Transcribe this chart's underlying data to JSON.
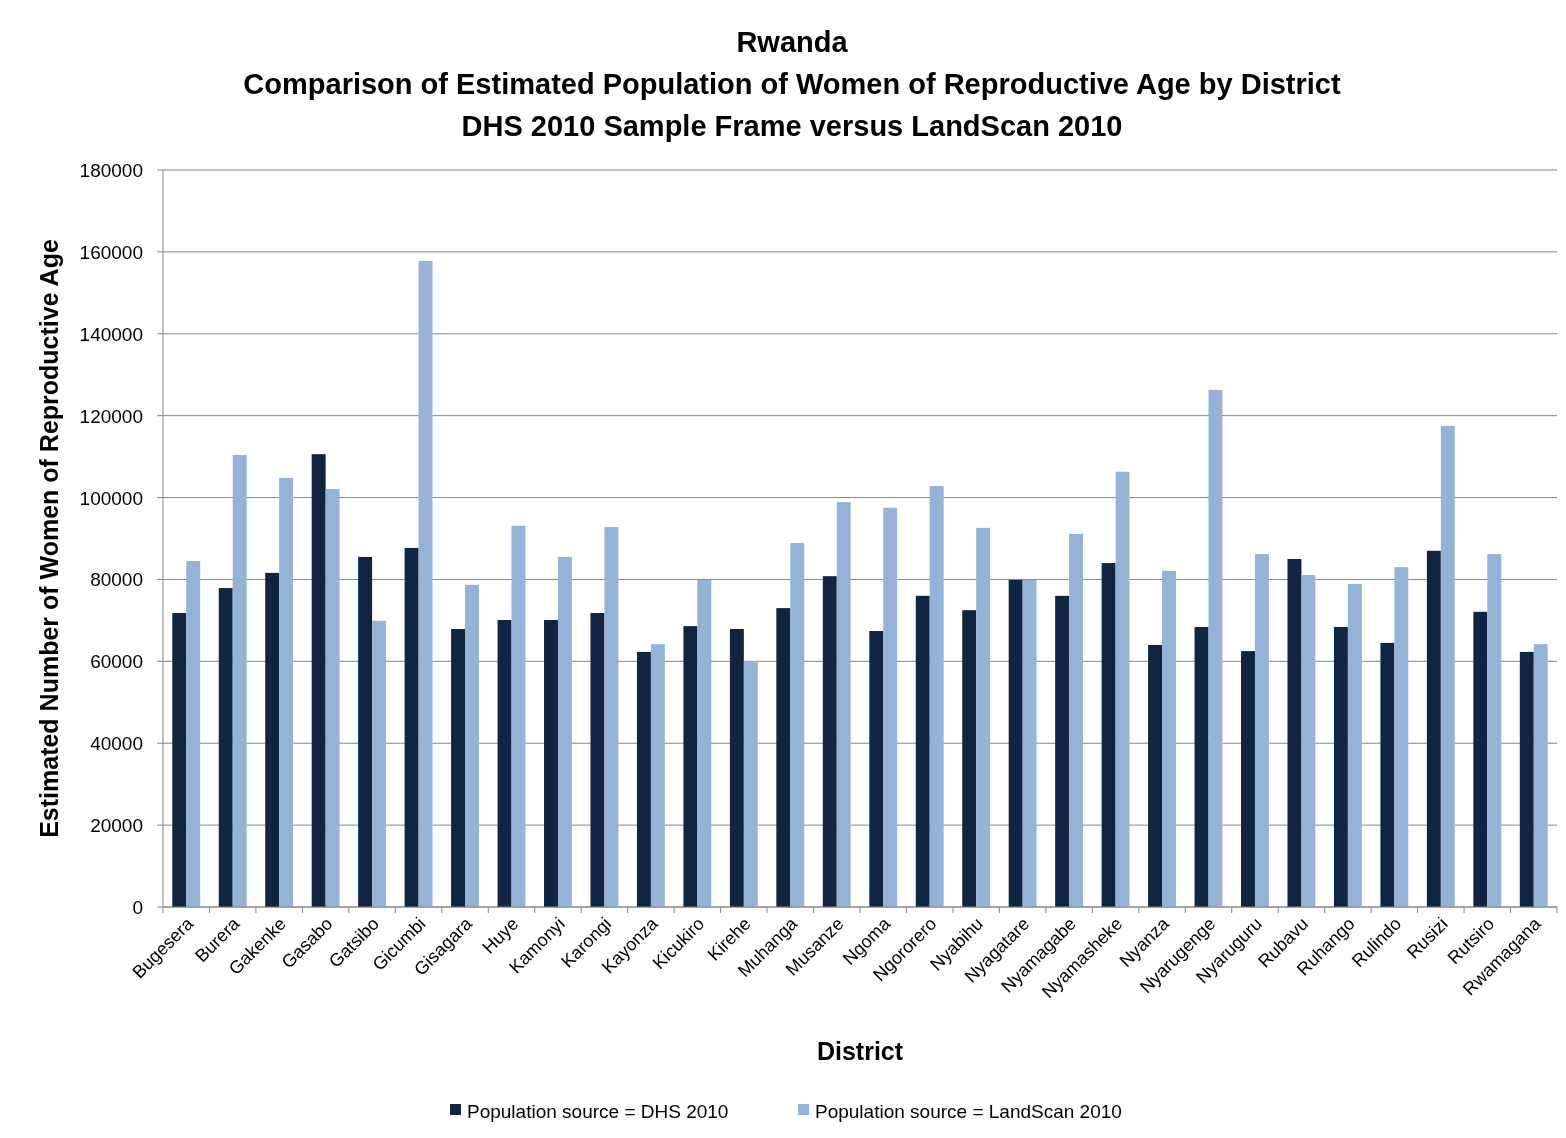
{
  "chart_data": {
    "type": "bar",
    "title": "Rwanda\nComparison of Estimated Population of Women of Reproductive Age by District\nDHS 2010 Sample Frame versus LandScan 2010",
    "xlabel": "District",
    "ylabel": "Estimated Number of Women of Reproductive Age",
    "categories": [
      "Bugesera",
      "Burera",
      "Gakenke",
      "Gasabo",
      "Gatsibo",
      "Gicumbi",
      "Gisagara",
      "Huye",
      "Kamonyi",
      "Karongi",
      "Kayonza",
      "Kicukiro",
      "Kirehe",
      "Muhanga",
      "Musanze",
      "Ngoma",
      "Ngororero",
      "Nyabihu",
      "Nyagatare",
      "Nyamagabe",
      "Nyamasheke",
      "Nyanza",
      "Nyarugenge",
      "Nyaruguru",
      "Rubavu",
      "Ruhango",
      "Rulindo",
      "Rusizi",
      "Rutsiro",
      "Rwamagana"
    ],
    "series": [
      {
        "name": "Population source = DHS 2010",
        "color": "#10253f",
        "values": [
          71800,
          77900,
          81600,
          110600,
          85500,
          87700,
          67900,
          70100,
          70100,
          71800,
          62300,
          68600,
          67900,
          73000,
          80800,
          67400,
          76000,
          72500,
          79900,
          76000,
          84000,
          64000,
          68400,
          62500,
          85000,
          68400,
          64500,
          87000,
          72100,
          62300
        ]
      },
      {
        "name": "Population source = LandScan 2010",
        "color": "#95b3d7",
        "values": [
          84500,
          110400,
          104800,
          102100,
          69900,
          157800,
          78700,
          93100,
          85500,
          92800,
          64200,
          79900,
          60100,
          88900,
          98900,
          97500,
          102800,
          92600,
          79900,
          91100,
          106300,
          82100,
          126300,
          86200,
          81100,
          78900,
          83000,
          117500,
          86200,
          64200
        ]
      }
    ],
    "ylim": [
      0,
      180000
    ],
    "yticks": [
      0,
      20000,
      40000,
      60000,
      80000,
      100000,
      120000,
      140000,
      160000,
      180000
    ],
    "grid": "y",
    "legend": "bottom"
  }
}
